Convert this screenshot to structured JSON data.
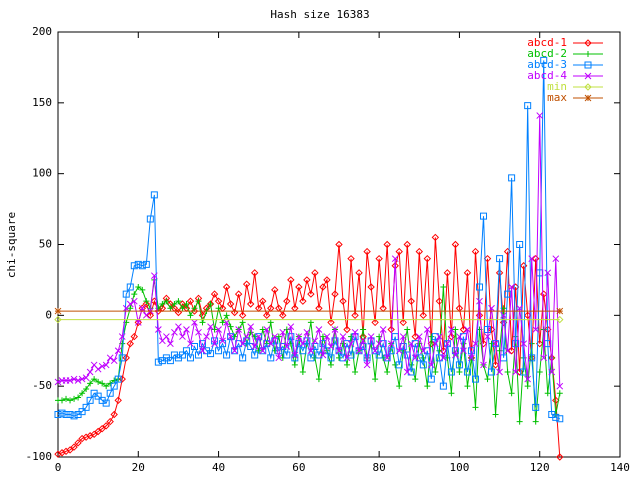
{
  "chart_data": {
    "type": "line",
    "title": "Hash size 16383",
    "y_label": "chi-square",
    "xlim": [
      0,
      140
    ],
    "ylim": [
      -100,
      200
    ],
    "xticks": [
      0,
      20,
      40,
      60,
      80,
      100,
      120,
      140
    ],
    "yticks": [
      -100,
      -50,
      0,
      50,
      100,
      150,
      200
    ],
    "grid": false,
    "legend": "top-right",
    "x": [
      0,
      1,
      2,
      3,
      4,
      5,
      6,
      7,
      8,
      9,
      10,
      11,
      12,
      13,
      14,
      15,
      16,
      17,
      18,
      19,
      20,
      21,
      22,
      23,
      24,
      25,
      26,
      27,
      28,
      29,
      30,
      31,
      32,
      33,
      34,
      35,
      36,
      37,
      38,
      39,
      40,
      41,
      42,
      43,
      44,
      45,
      46,
      47,
      48,
      49,
      50,
      51,
      52,
      53,
      54,
      55,
      56,
      57,
      58,
      59,
      60,
      61,
      62,
      63,
      64,
      65,
      66,
      67,
      68,
      69,
      70,
      71,
      72,
      73,
      74,
      75,
      76,
      77,
      78,
      79,
      80,
      81,
      82,
      83,
      84,
      85,
      86,
      87,
      88,
      89,
      90,
      91,
      92,
      93,
      94,
      95,
      96,
      97,
      98,
      99,
      100,
      101,
      102,
      103,
      104,
      105,
      106,
      107,
      108,
      109,
      110,
      111,
      112,
      113,
      114,
      115,
      116,
      117,
      118,
      119,
      120,
      121,
      122,
      123,
      124,
      125
    ],
    "series": [
      {
        "name": "abcd-1",
        "color": "#ff0000",
        "marker": "diamond",
        "values": [
          -98,
          -97,
          -96,
          -95,
          -93,
          -90,
          -87,
          -86,
          -85,
          -84,
          -82,
          -80,
          -78,
          -75,
          -70,
          -60,
          -45,
          -30,
          -20,
          -15,
          -5,
          5,
          8,
          0,
          10,
          3,
          5,
          12,
          8,
          5,
          2,
          8,
          5,
          10,
          3,
          12,
          0,
          5,
          8,
          15,
          10,
          5,
          20,
          8,
          2,
          15,
          0,
          22,
          8,
          30,
          5,
          10,
          0,
          5,
          18,
          5,
          0,
          10,
          25,
          5,
          20,
          10,
          25,
          15,
          30,
          5,
          20,
          25,
          -5,
          15,
          50,
          10,
          -10,
          40,
          0,
          30,
          -15,
          45,
          20,
          -5,
          40,
          5,
          50,
          -10,
          35,
          45,
          -5,
          50,
          10,
          -15,
          45,
          0,
          40,
          -20,
          55,
          10,
          -25,
          30,
          -15,
          50,
          5,
          -10,
          30,
          -30,
          45,
          0,
          -20,
          40,
          -10,
          -35,
          30,
          -5,
          45,
          -25,
          20,
          -40,
          35,
          0,
          -30,
          40,
          -20,
          15,
          -10,
          -30,
          -60,
          -100
        ]
      },
      {
        "name": "abcd-2",
        "color": "#00c000",
        "marker": "plus",
        "values": [
          -60,
          -60,
          -59,
          -60,
          -59,
          -58,
          -55,
          -52,
          -48,
          -45,
          -47,
          -48,
          -50,
          -48,
          -46,
          -45,
          -20,
          -5,
          5,
          15,
          20,
          18,
          10,
          5,
          25,
          5,
          8,
          10,
          5,
          8,
          10,
          5,
          8,
          0,
          5,
          10,
          -5,
          3,
          8,
          -10,
          5,
          -5,
          0,
          -8,
          -15,
          -10,
          -5,
          -20,
          -12,
          -15,
          -25,
          -10,
          -20,
          -5,
          -25,
          -15,
          -30,
          -10,
          -20,
          -35,
          -15,
          -40,
          -20,
          -5,
          -30,
          -45,
          -15,
          -25,
          -35,
          -10,
          -30,
          -20,
          -35,
          -15,
          -40,
          -25,
          -10,
          -30,
          -20,
          -45,
          -15,
          -30,
          -40,
          -20,
          -35,
          -50,
          -25,
          -10,
          -35,
          -45,
          -20,
          -30,
          -50,
          -15,
          -40,
          -25,
          20,
          -30,
          -55,
          -10,
          -40,
          -20,
          -50,
          -30,
          -65,
          -10,
          -35,
          -45,
          -20,
          -70,
          -25,
          5,
          -40,
          -55,
          -15,
          -75,
          -30,
          -50,
          -20,
          -75,
          -40,
          -10,
          -55,
          -30,
          -70,
          -55
        ]
      },
      {
        "name": "abcd-3",
        "color": "#0080ff",
        "marker": "square",
        "values": [
          -70,
          -69,
          -70,
          -70,
          -71,
          -70,
          -68,
          -65,
          -60,
          -55,
          -57,
          -60,
          -62,
          -55,
          -50,
          -45,
          -30,
          15,
          20,
          35,
          36,
          35,
          36,
          68,
          85,
          -33,
          -32,
          -30,
          -32,
          -28,
          -30,
          -28,
          -25,
          -30,
          -22,
          -28,
          -20,
          -25,
          -27,
          -18,
          -25,
          -20,
          -28,
          -15,
          -25,
          -20,
          -30,
          -18,
          -22,
          -28,
          -15,
          -25,
          -20,
          -30,
          -18,
          -25,
          -22,
          -28,
          -15,
          -30,
          -20,
          -25,
          -18,
          -30,
          -22,
          -28,
          -20,
          -25,
          -30,
          -18,
          -25,
          -30,
          -20,
          -28,
          -15,
          -25,
          -22,
          -30,
          -18,
          -25,
          -28,
          -20,
          -30,
          -25,
          -15,
          -35,
          -22,
          -28,
          -40,
          -20,
          -30,
          -35,
          -25,
          -45,
          -15,
          -30,
          -50,
          -20,
          -40,
          -25,
          -35,
          -15,
          -40,
          -25,
          -45,
          20,
          70,
          -10,
          -40,
          -20,
          40,
          -30,
          15,
          97,
          -20,
          50,
          -40,
          148,
          -30,
          -65,
          30,
          180,
          -20,
          -70,
          -72,
          -73
        ]
      },
      {
        "name": "abcd-4",
        "color": "#c000ff",
        "marker": "cross",
        "values": [
          -47,
          -46,
          -46,
          -46,
          -45,
          -46,
          -45,
          -44,
          -40,
          -35,
          -38,
          -36,
          -35,
          -30,
          -32,
          -25,
          -15,
          5,
          8,
          10,
          -5,
          5,
          0,
          3,
          28,
          -10,
          -18,
          -15,
          -20,
          -12,
          -8,
          -15,
          -10,
          -20,
          -5,
          -12,
          -25,
          -15,
          -8,
          -20,
          -10,
          -18,
          -5,
          -15,
          -25,
          -10,
          -20,
          -15,
          -8,
          -22,
          -15,
          -25,
          -10,
          -20,
          -15,
          -30,
          -12,
          -22,
          -8,
          -28,
          -15,
          -20,
          -12,
          -25,
          -18,
          -10,
          -28,
          -15,
          -22,
          -10,
          -25,
          -15,
          -30,
          -20,
          -12,
          -25,
          -18,
          -35,
          -15,
          -25,
          -20,
          -10,
          -30,
          -20,
          40,
          -25,
          -15,
          -40,
          -20,
          -30,
          -15,
          -25,
          -10,
          -35,
          -20,
          -15,
          -30,
          -20,
          -10,
          -28,
          -15,
          -25,
          -10,
          -30,
          -20,
          10,
          -35,
          -15,
          5,
          -20,
          -40,
          0,
          -25,
          20,
          -40,
          5,
          -20,
          -45,
          40,
          -10,
          141,
          -30,
          30,
          -40,
          40,
          -50
        ]
      },
      {
        "name": "min",
        "color": "#c0e040",
        "marker": "diamond",
        "x": [
          0,
          125
        ],
        "values": [
          -3,
          -3
        ]
      },
      {
        "name": "max",
        "color": "#c05000",
        "marker": "star",
        "x": [
          0,
          125
        ],
        "values": [
          3,
          3
        ]
      }
    ]
  }
}
